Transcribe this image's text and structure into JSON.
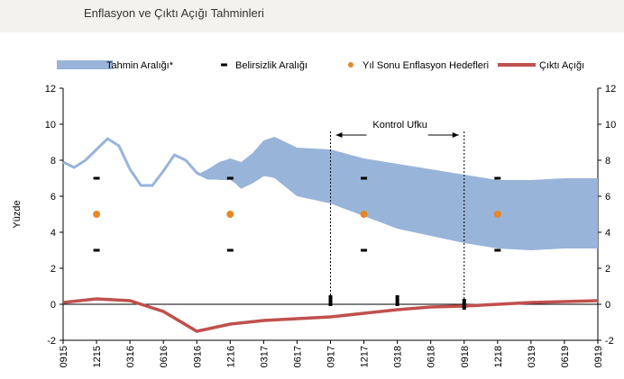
{
  "header": {
    "title": "Enflasyon ve Çıktı Açığı Tahminleri"
  },
  "chart_data": {
    "type": "line",
    "title": "",
    "ylabel": "Yüzde",
    "ylim": [
      -2,
      12
    ],
    "yticks": [
      -2,
      0,
      2,
      4,
      6,
      8,
      10,
      12
    ],
    "grid": false,
    "legend_position": "top",
    "colors": {
      "band": "#98b4d9",
      "inflation": "#98b4d9",
      "marker": "#000000",
      "target": "#e8862a",
      "output_gap": "#c0504d"
    },
    "xticklabels": [
      "0915",
      "1215",
      "0316",
      "0616",
      "0916",
      "1216",
      "0317",
      "0617",
      "0917",
      "1217",
      "0318",
      "0618",
      "0918",
      "1218",
      "0319",
      "0619",
      "0919"
    ],
    "legend": [
      {
        "key": "band",
        "label": "Tahmin Aralığı*"
      },
      {
        "key": "marker",
        "label": "Belirsizlik Aralığı"
      },
      {
        "key": "target",
        "label": "Yıl Sonu Enflasyon Hedefleri"
      },
      {
        "key": "output_gap",
        "label": "Çıktı Açığı"
      }
    ],
    "annotation": {
      "text": "Kontrol Ufku",
      "from_quarter": 8,
      "to_quarter": 12
    },
    "inflation_history": [
      [
        0,
        7.9
      ],
      [
        0.33,
        7.6
      ],
      [
        0.67,
        8.0
      ],
      [
        1,
        8.6
      ],
      [
        1.33,
        9.2
      ],
      [
        1.67,
        8.8
      ],
      [
        2,
        7.5
      ],
      [
        2.33,
        6.6
      ],
      [
        2.67,
        6.6
      ],
      [
        3,
        7.4
      ],
      [
        3.33,
        8.3
      ],
      [
        3.67,
        8.0
      ],
      [
        4,
        7.3
      ],
      [
        4.33,
        7.0
      ],
      [
        4.67,
        7.0
      ],
      [
        5,
        7.1
      ],
      [
        5.33,
        6.5
      ],
      [
        5.67,
        6.8
      ],
      [
        6,
        7.2
      ],
      [
        6.33,
        7.1
      ]
    ],
    "band_upper": [
      [
        4,
        7.2
      ],
      [
        4.33,
        7.5
      ],
      [
        4.67,
        7.9
      ],
      [
        5,
        8.1
      ],
      [
        5.33,
        7.9
      ],
      [
        5.67,
        8.4
      ],
      [
        6,
        9.1
      ],
      [
        6.33,
        9.3
      ],
      [
        7,
        8.7
      ],
      [
        8,
        8.6
      ],
      [
        9,
        8.1
      ],
      [
        10,
        7.8
      ],
      [
        11,
        7.5
      ],
      [
        12,
        7.2
      ],
      [
        13,
        6.9
      ],
      [
        14,
        6.9
      ],
      [
        15,
        7.0
      ],
      [
        16,
        7.0
      ]
    ],
    "band_lower": [
      [
        4,
        7.2
      ],
      [
        4.33,
        7.0
      ],
      [
        4.67,
        6.9
      ],
      [
        5,
        6.9
      ],
      [
        5.33,
        6.5
      ],
      [
        5.67,
        6.8
      ],
      [
        6,
        7.2
      ],
      [
        6.33,
        7.0
      ],
      [
        7,
        6.0
      ],
      [
        8,
        5.6
      ],
      [
        9,
        4.9
      ],
      [
        10,
        4.2
      ],
      [
        11,
        3.8
      ],
      [
        12,
        3.4
      ],
      [
        13,
        3.1
      ],
      [
        14,
        3.0
      ],
      [
        15,
        3.1
      ],
      [
        16,
        3.1
      ]
    ],
    "targets": [
      [
        1,
        5.0
      ],
      [
        5,
        5.0
      ],
      [
        9,
        5.0
      ],
      [
        13,
        5.0
      ]
    ],
    "uncertainty_markers": [
      [
        1,
        7.0
      ],
      [
        1,
        3.0
      ],
      [
        5,
        7.0
      ],
      [
        5,
        3.0
      ],
      [
        9,
        7.0
      ],
      [
        9,
        3.0
      ],
      [
        13,
        7.0
      ],
      [
        13,
        3.0
      ]
    ],
    "tall_markers": [
      [
        8,
        0.2
      ],
      [
        10,
        0.2
      ],
      [
        12,
        0.0
      ]
    ],
    "output_gap": [
      [
        0,
        0.1
      ],
      [
        0.5,
        0.2
      ],
      [
        1,
        0.3
      ],
      [
        2,
        0.2
      ],
      [
        2.5,
        -0.1
      ],
      [
        3,
        -0.4
      ],
      [
        4,
        -1.5
      ],
      [
        5,
        -1.1
      ],
      [
        6,
        -0.9
      ],
      [
        7,
        -0.8
      ],
      [
        8,
        -0.7
      ],
      [
        9,
        -0.5
      ],
      [
        10,
        -0.3
      ],
      [
        11,
        -0.15
      ],
      [
        12,
        -0.1
      ],
      [
        13,
        0.0
      ],
      [
        14,
        0.1
      ],
      [
        15,
        0.15
      ],
      [
        16,
        0.2
      ]
    ]
  }
}
